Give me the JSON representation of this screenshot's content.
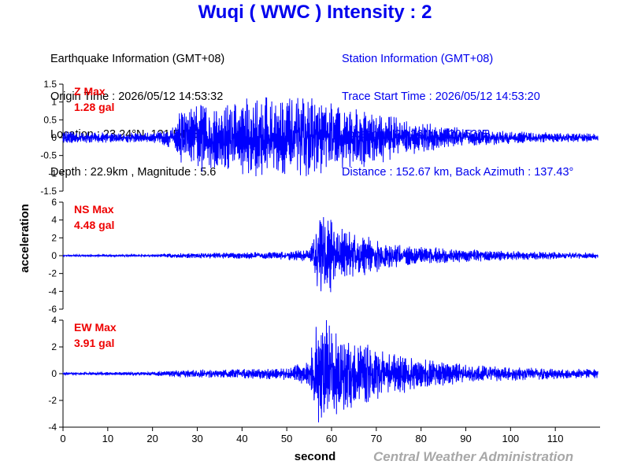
{
  "header": {
    "title": "Wuqi ( WWC ) Intensity : 2"
  },
  "earthquake_info": {
    "heading": "Earthquake Information (GMT+08)",
    "origin_time": "Origin Time : 2026/05/12 14:53:32",
    "location": "Location : 23.24°N, 121.54°E",
    "depth_magnitude": "Depth : 22.9km , Magnitude : 5.6"
  },
  "station_info": {
    "heading": "Station Information (GMT+08)",
    "trace_start": "Trace Start Time : 2026/05/12 14:53:20",
    "location": "Location : 24.26°N, 120.52°E",
    "distance": "Distance : 152.67 km, Back Azimuth : 137.43°"
  },
  "credit": "Central Weather Administration",
  "colors": {
    "trace": "#0000ff",
    "title": "#0000ee",
    "channel_label": "#ee0000",
    "axis": "#000000",
    "credit": "#a8a8a8"
  },
  "chart_data": [
    {
      "type": "line",
      "channel": "Z Max",
      "peak_label": "1.28 gal",
      "ylabel": "acceleration",
      "xlabel": "second",
      "ylim": [
        -1.5,
        1.5
      ],
      "y_ticks": [
        "1.5",
        "1",
        "0.5",
        "0",
        "-0.5",
        "-1",
        "-1.5"
      ],
      "xlim": [
        0,
        120
      ],
      "x_ticks": [
        "0",
        "10",
        "20",
        "30",
        "40",
        "50",
        "60",
        "70",
        "80",
        "90",
        "100",
        "110"
      ],
      "grid": false,
      "envelope": {
        "time": [
          0,
          10,
          20,
          25,
          26,
          30,
          35,
          40,
          45,
          50,
          55,
          60,
          65,
          70,
          75,
          80,
          85,
          90,
          100,
          110,
          119
        ],
        "amplitude": [
          0.15,
          0.12,
          0.12,
          0.28,
          0.6,
          0.8,
          0.85,
          0.9,
          1.0,
          0.95,
          1.0,
          0.85,
          0.75,
          0.65,
          0.45,
          0.35,
          0.3,
          0.22,
          0.15,
          0.12,
          0.1
        ]
      }
    },
    {
      "type": "line",
      "channel": "NS Max",
      "peak_label": "4.48 gal",
      "ylim": [
        -6,
        6
      ],
      "y_ticks": [
        "6",
        "4",
        "2",
        "0",
        "-2",
        "-4",
        "-6"
      ],
      "xlim": [
        0,
        120
      ],
      "grid": false,
      "envelope": {
        "time": [
          0,
          20,
          26,
          40,
          50,
          55,
          57,
          58,
          60,
          62,
          65,
          70,
          75,
          80,
          90,
          100,
          110,
          119
        ],
        "amplitude": [
          0.08,
          0.1,
          0.25,
          0.3,
          0.4,
          0.6,
          3.5,
          4.4,
          3.8,
          2.6,
          2.1,
          1.6,
          1.1,
          0.9,
          0.6,
          0.45,
          0.35,
          0.3
        ]
      }
    },
    {
      "type": "line",
      "channel": "EW Max",
      "peak_label": "3.91 gal",
      "ylim": [
        -4,
        4
      ],
      "y_ticks": [
        "4",
        "2",
        "0",
        "-2",
        "-4"
      ],
      "xlim": [
        0,
        120
      ],
      "grid": false,
      "envelope": {
        "time": [
          0,
          20,
          26,
          40,
          50,
          55,
          56,
          57,
          58,
          60,
          62,
          65,
          70,
          75,
          80,
          90,
          100,
          110,
          119
        ],
        "amplitude": [
          0.08,
          0.12,
          0.25,
          0.3,
          0.4,
          0.8,
          2.5,
          3.9,
          3.5,
          3.2,
          2.4,
          2.2,
          1.7,
          1.3,
          1.0,
          0.6,
          0.45,
          0.35,
          0.3
        ]
      }
    }
  ]
}
